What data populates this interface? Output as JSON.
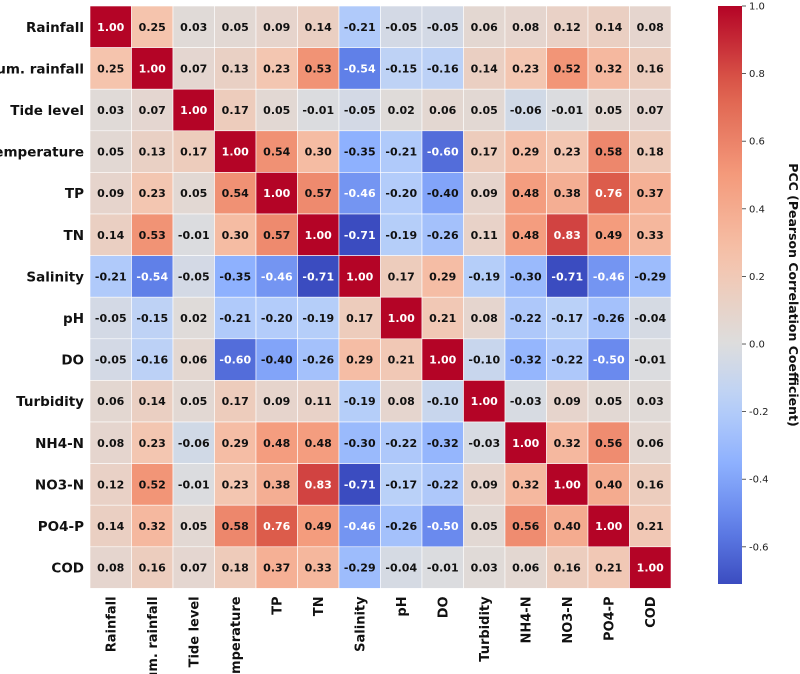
{
  "chart_data": {
    "type": "heatmap",
    "title": "",
    "labels": [
      "Rainfall",
      "Cum. rainfall",
      "Tide level",
      "Temperature",
      "TP",
      "TN",
      "Salinity",
      "pH",
      "DO",
      "Turbidity",
      "NH4-N",
      "NO3-N",
      "PO4-P",
      "COD"
    ],
    "values": [
      [
        1.0,
        0.25,
        0.03,
        0.05,
        0.09,
        0.14,
        -0.21,
        -0.05,
        -0.05,
        0.06,
        0.08,
        0.12,
        0.14,
        0.08
      ],
      [
        0.25,
        1.0,
        0.07,
        0.13,
        0.23,
        0.53,
        -0.54,
        -0.15,
        -0.16,
        0.14,
        0.23,
        0.52,
        0.32,
        0.16
      ],
      [
        0.03,
        0.07,
        1.0,
        0.17,
        0.05,
        -0.01,
        -0.05,
        0.02,
        0.06,
        0.05,
        -0.06,
        -0.01,
        0.05,
        0.07
      ],
      [
        0.05,
        0.13,
        0.17,
        1.0,
        0.54,
        0.3,
        -0.35,
        -0.21,
        -0.6,
        0.17,
        0.29,
        0.23,
        0.58,
        0.18
      ],
      [
        0.09,
        0.23,
        0.05,
        0.54,
        1.0,
        0.57,
        -0.46,
        -0.2,
        -0.4,
        0.09,
        0.48,
        0.38,
        0.76,
        0.37
      ],
      [
        0.14,
        0.53,
        -0.01,
        0.3,
        0.57,
        1.0,
        -0.71,
        -0.19,
        -0.26,
        0.11,
        0.48,
        0.83,
        0.49,
        0.33
      ],
      [
        -0.21,
        -0.54,
        -0.05,
        -0.35,
        -0.46,
        -0.71,
        1.0,
        0.17,
        0.29,
        -0.19,
        -0.3,
        -0.71,
        -0.46,
        -0.29
      ],
      [
        -0.05,
        -0.15,
        0.02,
        -0.21,
        -0.2,
        -0.19,
        0.17,
        1.0,
        0.21,
        0.08,
        -0.22,
        -0.17,
        -0.26,
        -0.04
      ],
      [
        -0.05,
        -0.16,
        0.06,
        -0.6,
        -0.4,
        -0.26,
        0.29,
        0.21,
        1.0,
        -0.1,
        -0.32,
        -0.22,
        -0.5,
        -0.01
      ],
      [
        0.06,
        0.14,
        0.05,
        0.17,
        0.09,
        0.11,
        -0.19,
        0.08,
        -0.1,
        1.0,
        -0.03,
        0.09,
        0.05,
        0.03
      ],
      [
        0.08,
        0.23,
        -0.06,
        0.29,
        0.48,
        0.48,
        -0.3,
        -0.22,
        -0.32,
        -0.03,
        1.0,
        0.32,
        0.56,
        0.06
      ],
      [
        0.12,
        0.52,
        -0.01,
        0.23,
        0.38,
        0.83,
        -0.71,
        -0.17,
        -0.22,
        0.09,
        0.32,
        1.0,
        0.4,
        0.16
      ],
      [
        0.14,
        0.32,
        0.05,
        0.58,
        0.76,
        0.49,
        -0.46,
        -0.26,
        -0.5,
        0.05,
        0.56,
        0.4,
        1.0,
        0.21
      ],
      [
        0.08,
        0.16,
        0.07,
        0.18,
        0.37,
        0.33,
        -0.29,
        -0.04,
        -0.01,
        0.03,
        0.06,
        0.16,
        0.21,
        1.0
      ]
    ],
    "colorbar": {
      "label": "PCC (Pearson Correlation Coefficient)",
      "range": [
        -0.71,
        1.0
      ],
      "ticks": [
        "1.0",
        "0.8",
        "0.6",
        "0.4",
        "0.2",
        "0.0",
        "-0.2",
        "-0.4",
        "-0.6"
      ],
      "colormap": "coolwarm",
      "colors": {
        "low": "#3b4cc0",
        "mid": "#dddddd",
        "high": "#b40426"
      }
    }
  }
}
